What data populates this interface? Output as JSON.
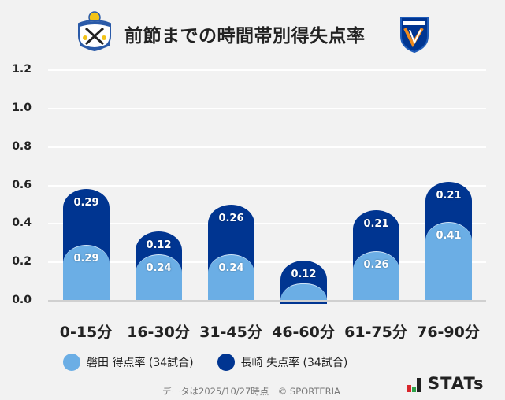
{
  "header": {
    "title": "前節までの時間帯別得失点率",
    "home_logo": "jubilo-iwata-crest-icon",
    "away_logo": "v-varen-nagasaki-crest-icon"
  },
  "colors": {
    "home": "#6baee5",
    "away": "#003591",
    "background": "#f2f2f2",
    "gridline": "#ffffff"
  },
  "chart_data": {
    "type": "bar",
    "stacked": true,
    "title": "前節までの時間帯別得失点率",
    "xlabel": "",
    "ylabel": "",
    "ylim": [
      0,
      1.2
    ],
    "yticks": [
      "0.0",
      "0.2",
      "0.4",
      "0.6",
      "0.8",
      "1.0",
      "1.2"
    ],
    "grid": true,
    "legend_position": "bottom",
    "categories": [
      "0-15分",
      "16-30分",
      "31-45分",
      "46-60分",
      "61-75分",
      "76-90分"
    ],
    "series": [
      {
        "name": "磐田 得点率 (34試合)",
        "color": "#6baee5",
        "values": [
          0.29,
          0.24,
          0.24,
          0.09,
          0.26,
          0.41
        ],
        "labels": [
          "0.29",
          "0.24",
          "0.24",
          "",
          "0.26",
          "0.41"
        ]
      },
      {
        "name": "長崎 失点率 (34試合)",
        "color": "#003591",
        "values": [
          0.29,
          0.12,
          0.26,
          0.12,
          0.21,
          0.21
        ],
        "labels": [
          "0.29",
          "0.12",
          "0.26",
          "0.12",
          "0.21",
          "0.21"
        ]
      }
    ]
  },
  "legend": {
    "home": "磐田 得点率 (34試合)",
    "away": "長崎 失点率 (34試合)"
  },
  "footer": {
    "note": "データは2025/10/27時点　© SPORTERIA",
    "brand": "STATs"
  }
}
